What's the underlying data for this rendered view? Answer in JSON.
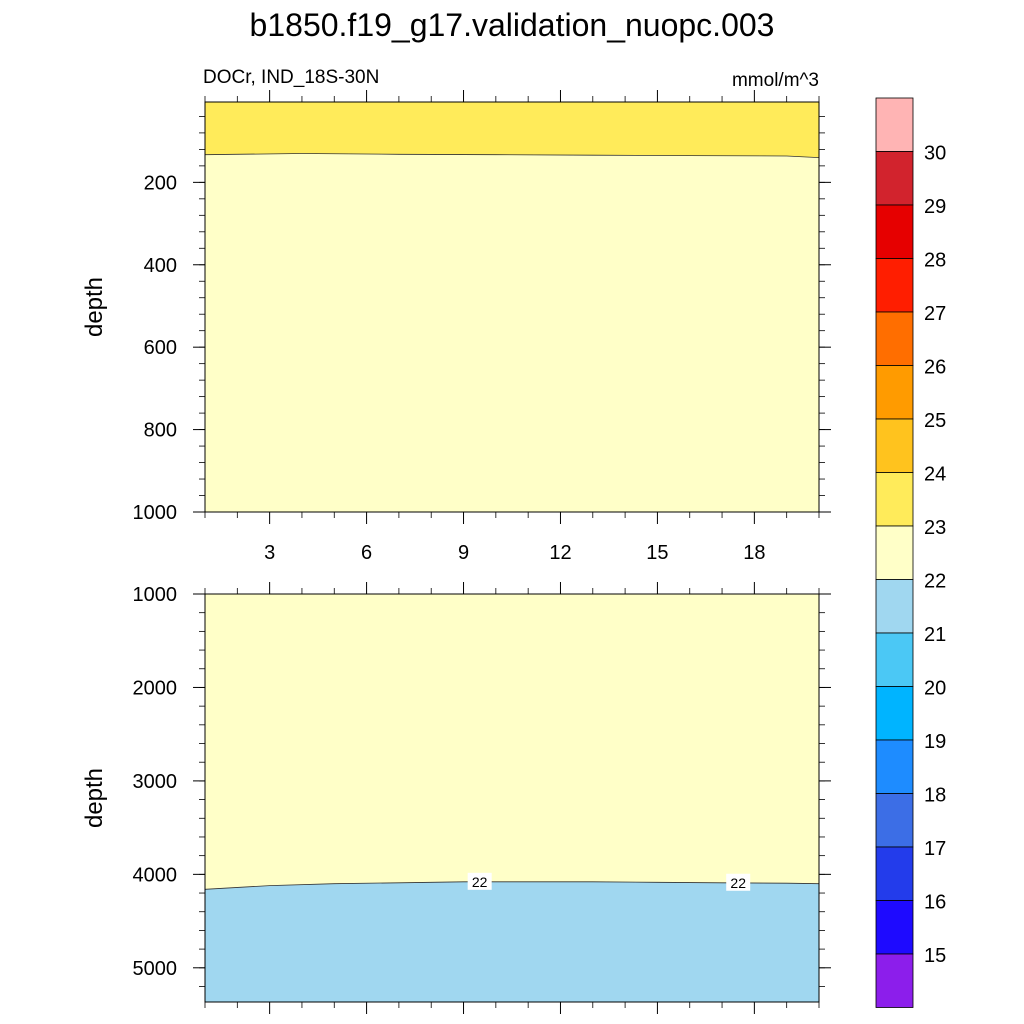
{
  "title": "b1850.f19_g17.validation_nuopc.003",
  "subtitle_left": "DOCr, IND_18S-30N",
  "subtitle_right": "mmol/m^3",
  "chart_data": [
    {
      "type": "heatmap",
      "panel": "upper",
      "xlabel": "",
      "ylabel": "depth",
      "xlim": [
        1,
        20
      ],
      "ylim": [
        1000,
        5
      ],
      "xticks": [
        3,
        6,
        9,
        12,
        15,
        18
      ],
      "yticks": [
        200,
        400,
        600,
        800,
        1000
      ],
      "regions": [
        {
          "range": "23-24",
          "color": "#ffeb5a",
          "from_depth": 5,
          "boundary": {
            "x": [
              1,
              4,
              7,
              10,
              13,
              16,
              19,
              20
            ],
            "depth": [
              133,
              130,
              132,
              133,
              134,
              135,
              136,
              140
            ]
          }
        },
        {
          "range": "22-23",
          "color": "#ffffc8",
          "to_depth": 1000
        }
      ],
      "contour_labels": []
    },
    {
      "type": "heatmap",
      "panel": "lower",
      "xlabel": "",
      "ylabel": "depth",
      "xlim": [
        1,
        20
      ],
      "ylim": [
        5366,
        1000
      ],
      "xticks": [
        3,
        6,
        9,
        12,
        15,
        18
      ],
      "yticks": [
        1000,
        2000,
        3000,
        4000,
        5000
      ],
      "regions": [
        {
          "range": "22-23",
          "color": "#ffffc8",
          "from_depth": 1000,
          "boundary": {
            "x": [
              1,
              3,
              5,
              7,
              9,
              11,
              13,
              15,
              17,
              19,
              20
            ],
            "depth": [
              4160,
              4120,
              4100,
              4090,
              4080,
              4080,
              4080,
              4085,
              4090,
              4095,
              4100
            ]
          }
        },
        {
          "range": "21-22",
          "color": "#a0d7f0",
          "to_depth": 5366
        }
      ],
      "contour_labels": [
        {
          "text": "22",
          "x": 9.5,
          "depth": 4080
        },
        {
          "text": "22",
          "x": 17.5,
          "depth": 4090
        }
      ]
    }
  ],
  "colorbar": {
    "labels": [
      "30",
      "29",
      "28",
      "27",
      "26",
      "25",
      "24",
      "23",
      "22",
      "21",
      "20",
      "19",
      "18",
      "17",
      "16",
      "15"
    ],
    "colors": [
      "#ffb4b4",
      "#d2232d",
      "#e60000",
      "#ff1e00",
      "#ff6e00",
      "#ff9b00",
      "#ffc31e",
      "#ffeb5a",
      "#ffffc8",
      "#a0d7f0",
      "#4bc8f5",
      "#00b4ff",
      "#1e8cff",
      "#3c6ee6",
      "#233ceb",
      "#1e0aff",
      "#8c1eeb"
    ]
  }
}
